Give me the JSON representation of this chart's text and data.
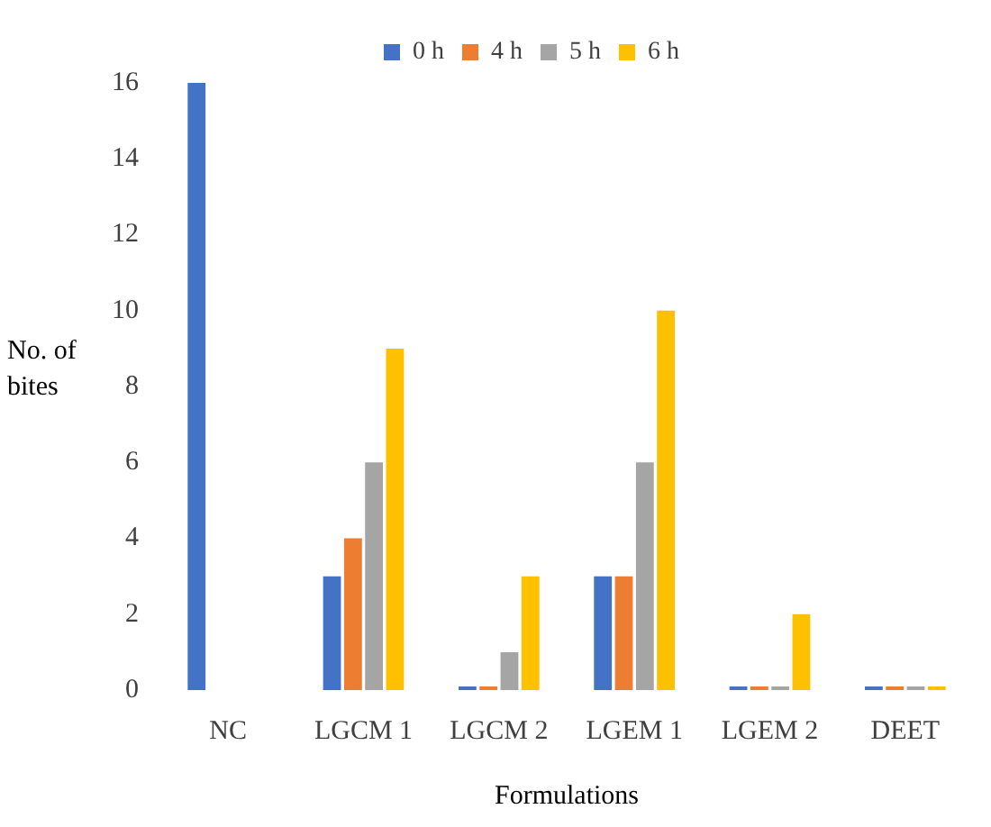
{
  "chart_data": {
    "type": "bar",
    "xlabel": "Formulations",
    "ylabel": "No. of bites",
    "categories": [
      "NC",
      "LGCM 1",
      "LGCM 2",
      "LGEM 1",
      "LGEM 2",
      "DEET"
    ],
    "series": [
      {
        "name": "0 h",
        "color": "#4472c4",
        "values": [
          16,
          3,
          0,
          3,
          0,
          0
        ]
      },
      {
        "name": "4 h",
        "color": "#ed7d31",
        "values": [
          null,
          4,
          0,
          3,
          0,
          0
        ]
      },
      {
        "name": "5 h",
        "color": "#a5a5a5",
        "values": [
          null,
          6,
          1,
          6,
          0,
          0
        ]
      },
      {
        "name": "6 h",
        "color": "#ffc000",
        "values": [
          null,
          9,
          3,
          10,
          2,
          0
        ]
      }
    ],
    "ylim": [
      0,
      16
    ],
    "yticks": [
      0,
      2,
      4,
      6,
      8,
      10,
      12,
      14,
      16
    ],
    "grid": false,
    "legend": "top"
  }
}
